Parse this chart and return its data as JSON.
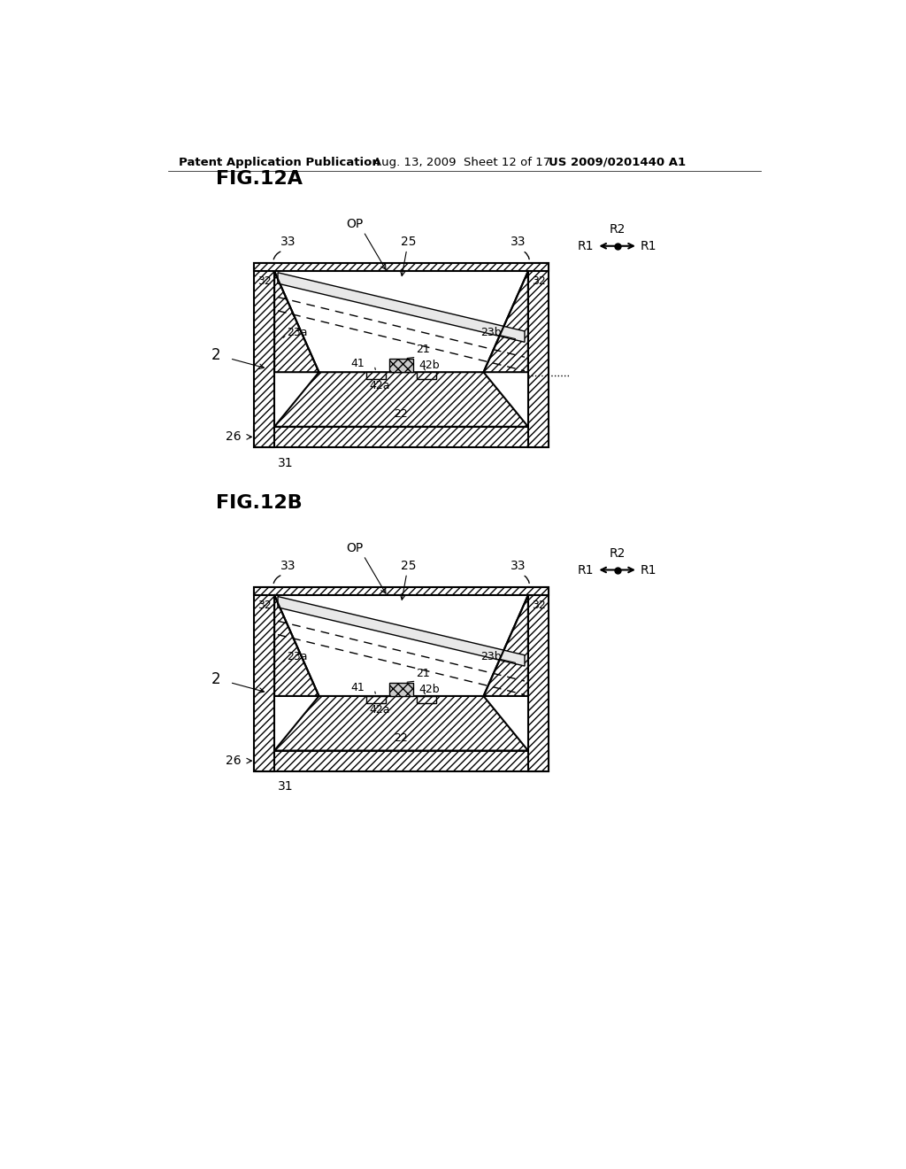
{
  "header_left": "Patent Application Publication",
  "header_mid": "Aug. 13, 2009  Sheet 12 of 17",
  "header_right": "US 2009/0201440 A1",
  "fig_a_label": "FIG.12A",
  "fig_b_label": "FIG.12B",
  "bg_color": "#ffffff"
}
